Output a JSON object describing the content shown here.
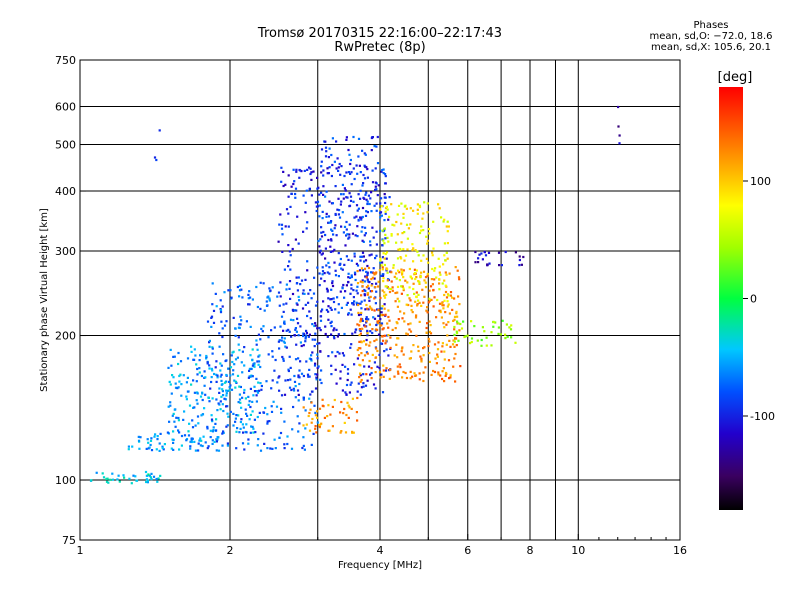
{
  "header": {
    "title_line1": "Tromsø 20170315 22:16:00–22:17:43",
    "title_line2": "RwPretec (8p)"
  },
  "phases": {
    "heading": "Phases",
    "line1": "mean, sd,O: −72.0, 18.6",
    "line2": "mean, sd,X: 105.6, 20.1"
  },
  "colorbar": {
    "unit": "[deg]",
    "ticks": [
      100,
      0,
      -100
    ],
    "range": [
      -180,
      180
    ]
  },
  "chart_data": {
    "type": "scatter",
    "xlabel": "Frequency [MHz]",
    "ylabel": "Stationary phase Virtual Height [km]",
    "xscale": "log",
    "yscale": "log",
    "xlim": [
      1,
      16
    ],
    "ylim": [
      75,
      750
    ],
    "xticks": [
      1,
      2,
      4,
      6,
      8,
      10,
      16
    ],
    "xgrid": [
      2,
      3,
      4,
      5,
      6,
      7,
      8,
      9,
      10
    ],
    "yticks": [
      75,
      100,
      200,
      300,
      400,
      500,
      600,
      750
    ],
    "ygrid": [
      100,
      200,
      300,
      400,
      500,
      600
    ],
    "grid": true,
    "color_variable": "phase [deg]",
    "clusters": [
      {
        "f_range": [
          1.05,
          1.45
        ],
        "h_range": [
          98,
          104
        ],
        "phase": -40,
        "n": 40
      },
      {
        "f_range": [
          1.25,
          1.9
        ],
        "h_range": [
          115,
          125
        ],
        "phase": -60,
        "n": 70
      },
      {
        "f_range": [
          1.5,
          2.3
        ],
        "h_range": [
          125,
          190
        ],
        "phase": -55,
        "n": 220
      },
      {
        "f_range": [
          1.8,
          3.0
        ],
        "h_range": [
          115,
          260
        ],
        "phase": -75,
        "n": 330
      },
      {
        "f_range": [
          2.5,
          4.2
        ],
        "h_range": [
          150,
          460
        ],
        "phase": -100,
        "n": 420
      },
      {
        "f_range": [
          3.0,
          4.1
        ],
        "h_range": [
          200,
          520
        ],
        "phase": -90,
        "n": 260
      },
      {
        "f_range": [
          2.8,
          3.6
        ],
        "h_range": [
          125,
          150
        ],
        "phase": 120,
        "n": 55
      },
      {
        "f_range": [
          3.6,
          5.8
        ],
        "h_range": [
          160,
          280
        ],
        "phase": 125,
        "n": 360
      },
      {
        "f_range": [
          4.0,
          5.5
        ],
        "h_range": [
          230,
          380
        ],
        "phase": 80,
        "n": 180
      },
      {
        "f_range": [
          5.6,
          7.5
        ],
        "h_range": [
          190,
          215
        ],
        "phase": 40,
        "n": 45
      },
      {
        "f_range": [
          6.2,
          7.8
        ],
        "h_range": [
          280,
          300
        ],
        "phase": -120,
        "n": 25
      },
      {
        "f_range": [
          1.35,
          1.45
        ],
        "h_range": [
          450,
          540
        ],
        "phase": -110,
        "n": 3
      },
      {
        "f_range": [
          12.0,
          12.1
        ],
        "h_range": [
          500,
          600
        ],
        "phase": -130,
        "n": 4
      }
    ]
  }
}
